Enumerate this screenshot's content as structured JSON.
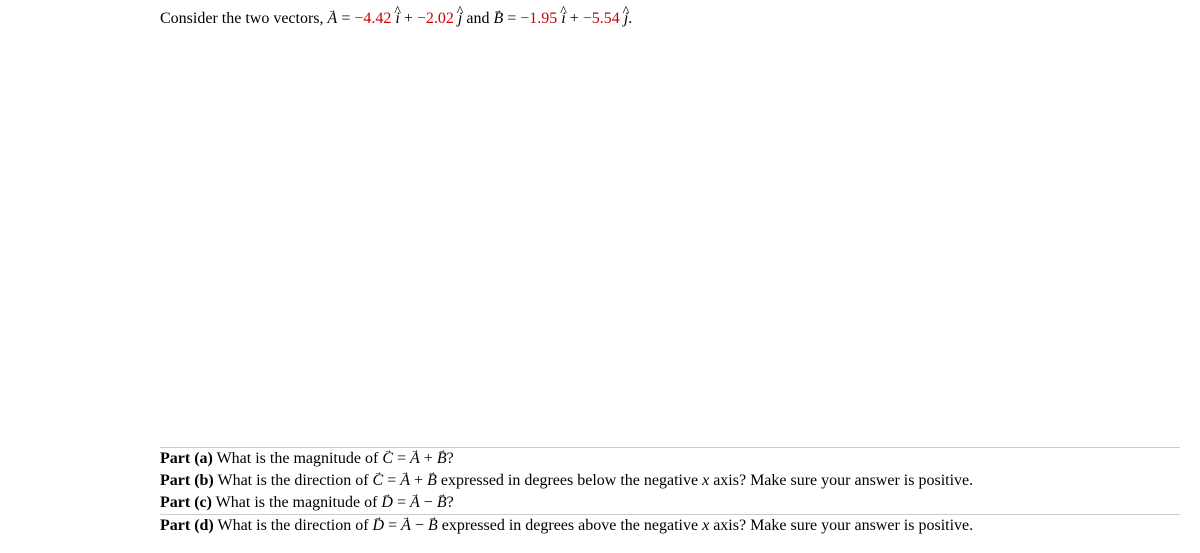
{
  "intro": {
    "prefix": "Consider the two vectors, ",
    "A_label": "A",
    "equals1": " = ",
    "A_i_coef": "−4.42 ",
    "i_hat1": "i",
    "plus1": " + ",
    "A_j_coef": "−2.02 ",
    "j_hat1": "j",
    "and_text": " and ",
    "B_label": "B",
    "equals2": " = ",
    "B_i_coef": "−1.95 ",
    "i_hat2": "i",
    "plus2": " + ",
    "B_j_coef": "−5.54 ",
    "j_hat2": "j",
    "period": "."
  },
  "parts": {
    "a": {
      "label": "Part (a)",
      "text1": "  What is the magnitude of ",
      "C": "C",
      "eq": " = ",
      "A": "A",
      "op": " + ",
      "B": "B",
      "q": "?"
    },
    "b": {
      "label": "Part (b)",
      "text1": "  What is the direction of ",
      "C": "C",
      "eq": " = ",
      "A": "A",
      "op": " + ",
      "B": "B",
      "text2": " expressed in degrees below the negative ",
      "x": "x",
      "text3": " axis? Make sure your answer is positive."
    },
    "c": {
      "label": "Part (c)",
      "text1": "  What is the magnitude of ",
      "D": "D",
      "eq": " = ",
      "A": "A",
      "op": " − ",
      "B": "B",
      "q": "?"
    },
    "d": {
      "label": "Part (d)",
      "text1": "  What is the direction of ",
      "D": "D",
      "eq": " = ",
      "A": "A",
      "op": " − ",
      "B": "B",
      "text2": " expressed in degrees above the negative ",
      "x": "x",
      "text3": " axis? Make sure your answer is positive."
    }
  },
  "colors": {
    "red": "#cc0000",
    "black": "#000000",
    "border": "#cccccc",
    "background": "#ffffff"
  },
  "fonts": {
    "body_family": "Times New Roman",
    "body_size": 16
  }
}
